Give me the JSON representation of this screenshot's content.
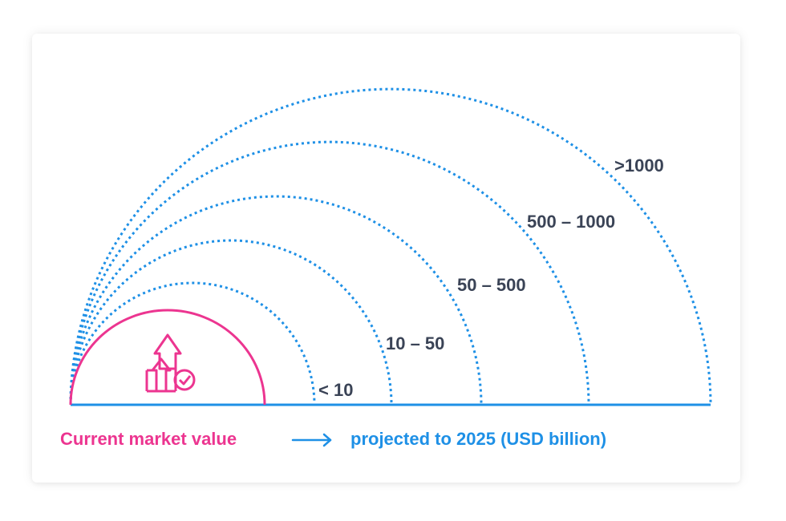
{
  "colors": {
    "current": "#ec3590",
    "projected": "#1e90e6",
    "label": "#3a4356"
  },
  "ranges": [
    {
      "label": "< 10"
    },
    {
      "label": "10 – 50"
    },
    {
      "label": "50 – 500"
    },
    {
      "label": "500 – 1000"
    },
    {
      "label": ">1000"
    }
  ],
  "legend": {
    "current_label": "Current market value",
    "projected_label": "projected to 2025 (USD billion)"
  },
  "icon": "growth-arrows-check-icon"
}
